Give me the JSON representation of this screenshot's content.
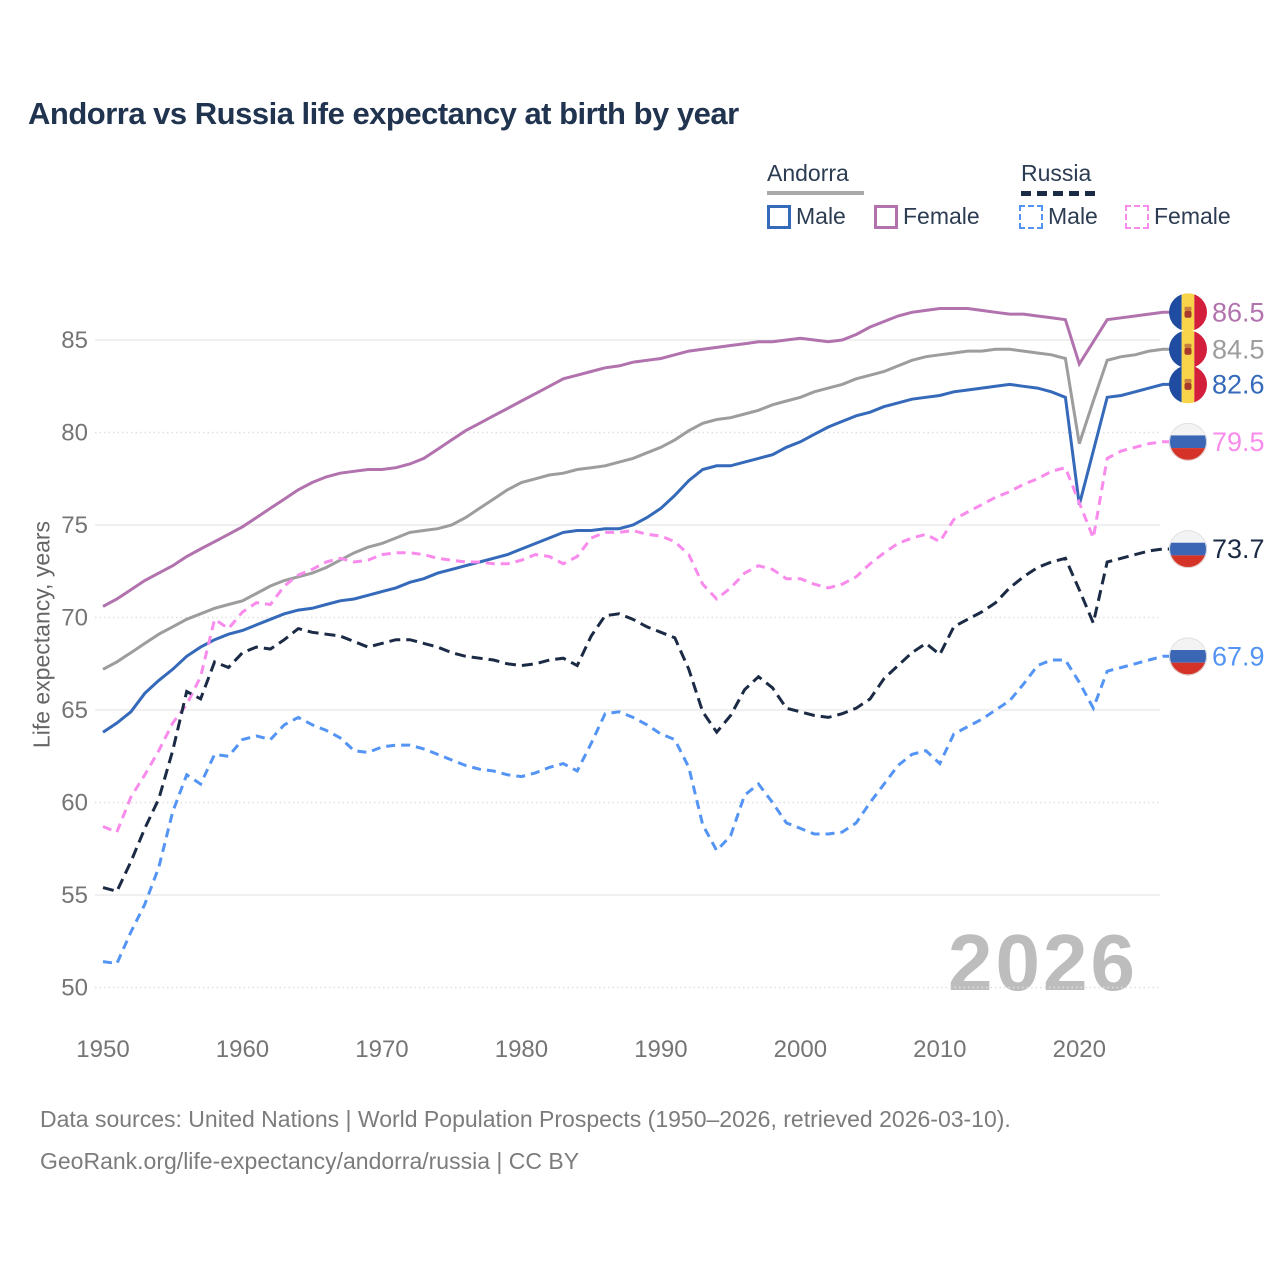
{
  "title": "Andorra vs Russia life expectancy at birth by year",
  "watermark": "2026",
  "y_axis_title": "Life expectancy, years",
  "footer": {
    "line1": "Data sources: United Nations | World Population Prospects (1950–2026, retrieved 2026-03-10).",
    "line2": "GeoRank.org/life-expectancy/andorra/russia | CC BY"
  },
  "legend": {
    "groups": [
      {
        "label": "Andorra",
        "underline_color": "#a9a9a9",
        "underline_style": "solid",
        "items": [
          {
            "label": "Male",
            "color": "#3569b9",
            "dashed": false
          },
          {
            "label": "Female",
            "color": "#b172ae",
            "dashed": false
          }
        ]
      },
      {
        "label": "Russia",
        "underline_color": "#1b2a45",
        "underline_style": "dashed",
        "items": [
          {
            "label": "Male",
            "color": "#5494f4",
            "dashed": true
          },
          {
            "label": "Female",
            "color": "#f88bec",
            "dashed": true
          }
        ]
      }
    ]
  },
  "chart_data": {
    "type": "line",
    "title": "Andorra vs Russia life expectancy at birth by year",
    "xlabel": "",
    "ylabel": "Life expectancy, years",
    "xlim": [
      1950,
      2026
    ],
    "ylim": [
      48.5,
      88.5
    ],
    "xticks": [
      1950,
      1960,
      1970,
      1980,
      1990,
      2000,
      2010,
      2020
    ],
    "yticks": [
      50,
      55,
      60,
      65,
      70,
      75,
      80,
      85
    ],
    "grid": "horizontal",
    "legend_position": "top-right",
    "x": [
      1950,
      1951,
      1952,
      1953,
      1954,
      1955,
      1956,
      1957,
      1958,
      1959,
      1960,
      1961,
      1962,
      1963,
      1964,
      1965,
      1966,
      1967,
      1968,
      1969,
      1970,
      1971,
      1972,
      1973,
      1974,
      1975,
      1976,
      1977,
      1978,
      1979,
      1980,
      1981,
      1982,
      1983,
      1984,
      1985,
      1986,
      1987,
      1988,
      1989,
      1990,
      1991,
      1992,
      1993,
      1994,
      1995,
      1996,
      1997,
      1998,
      1999,
      2000,
      2001,
      2002,
      2003,
      2004,
      2005,
      2006,
      2007,
      2008,
      2009,
      2010,
      2011,
      2012,
      2013,
      2014,
      2015,
      2016,
      2017,
      2018,
      2019,
      2020,
      2021,
      2022,
      2023,
      2024,
      2025,
      2026
    ],
    "series": [
      {
        "name": "Andorra Female",
        "country": "Andorra",
        "sex": "Female",
        "color": "#b172ae",
        "dashed": false,
        "flag": "andorra",
        "end_label": "86.5",
        "values": [
          70.6,
          71.0,
          71.5,
          72.0,
          72.4,
          72.8,
          73.3,
          73.7,
          74.1,
          74.5,
          74.9,
          75.4,
          75.9,
          76.4,
          76.9,
          77.3,
          77.6,
          77.8,
          77.9,
          78.0,
          78.0,
          78.1,
          78.3,
          78.6,
          79.1,
          79.6,
          80.1,
          80.5,
          80.9,
          81.3,
          81.7,
          82.1,
          82.5,
          82.9,
          83.1,
          83.3,
          83.5,
          83.6,
          83.8,
          83.9,
          84.0,
          84.2,
          84.4,
          84.5,
          84.6,
          84.7,
          84.8,
          84.9,
          84.9,
          85.0,
          85.1,
          85.0,
          84.9,
          85.0,
          85.3,
          85.7,
          86.0,
          86.3,
          86.5,
          86.6,
          86.7,
          86.7,
          86.7,
          86.6,
          86.5,
          86.4,
          86.4,
          86.3,
          86.2,
          86.1,
          83.7,
          84.9,
          86.1,
          86.2,
          86.3,
          86.4,
          86.5
        ]
      },
      {
        "name": "Andorra Both sexes",
        "country": "Andorra",
        "sex": "Both",
        "color": "#9d9d9d",
        "dashed": false,
        "flag": "andorra",
        "end_label": "84.5",
        "values": [
          67.2,
          67.6,
          68.1,
          68.6,
          69.1,
          69.5,
          69.9,
          70.2,
          70.5,
          70.7,
          70.9,
          71.3,
          71.7,
          72.0,
          72.2,
          72.4,
          72.7,
          73.1,
          73.5,
          73.8,
          74.0,
          74.3,
          74.6,
          74.7,
          74.8,
          75.0,
          75.4,
          75.9,
          76.4,
          76.9,
          77.3,
          77.5,
          77.7,
          77.8,
          78.0,
          78.1,
          78.2,
          78.4,
          78.6,
          78.9,
          79.2,
          79.6,
          80.1,
          80.5,
          80.7,
          80.8,
          81.0,
          81.2,
          81.5,
          81.7,
          81.9,
          82.2,
          82.4,
          82.6,
          82.9,
          83.1,
          83.3,
          83.6,
          83.9,
          84.1,
          84.2,
          84.3,
          84.4,
          84.4,
          84.5,
          84.5,
          84.4,
          84.3,
          84.2,
          84.0,
          79.4,
          81.7,
          83.9,
          84.1,
          84.2,
          84.4,
          84.5
        ]
      },
      {
        "name": "Andorra Male",
        "country": "Andorra",
        "sex": "Male",
        "color": "#3569b9",
        "dashed": false,
        "flag": "andorra",
        "end_label": "82.6",
        "values": [
          63.8,
          64.3,
          64.9,
          65.9,
          66.6,
          67.2,
          67.9,
          68.4,
          68.8,
          69.1,
          69.3,
          69.6,
          69.9,
          70.2,
          70.4,
          70.5,
          70.7,
          70.9,
          71.0,
          71.2,
          71.4,
          71.6,
          71.9,
          72.1,
          72.4,
          72.6,
          72.8,
          73.0,
          73.2,
          73.4,
          73.7,
          74.0,
          74.3,
          74.6,
          74.7,
          74.7,
          74.8,
          74.8,
          75.0,
          75.4,
          75.9,
          76.6,
          77.4,
          78.0,
          78.2,
          78.2,
          78.4,
          78.6,
          78.8,
          79.2,
          79.5,
          79.9,
          80.3,
          80.6,
          80.9,
          81.1,
          81.4,
          81.6,
          81.8,
          81.9,
          82.0,
          82.2,
          82.3,
          82.4,
          82.5,
          82.6,
          82.5,
          82.4,
          82.2,
          81.9,
          76.1,
          79.0,
          81.9,
          82.0,
          82.2,
          82.4,
          82.6
        ]
      },
      {
        "name": "Russia Female",
        "country": "Russia",
        "sex": "Female",
        "color": "#f88bec",
        "dashed": true,
        "flag": "russia",
        "end_label": "79.5",
        "values": [
          58.7,
          58.4,
          60.3,
          61.5,
          62.8,
          64.3,
          65.3,
          66.8,
          69.9,
          69.4,
          70.3,
          70.8,
          70.7,
          71.7,
          72.3,
          72.6,
          73.0,
          73.2,
          73.0,
          73.1,
          73.4,
          73.5,
          73.5,
          73.4,
          73.2,
          73.1,
          73.0,
          73.0,
          72.9,
          72.9,
          73.1,
          73.4,
          73.3,
          72.9,
          73.3,
          74.3,
          74.6,
          74.6,
          74.7,
          74.5,
          74.4,
          74.1,
          73.4,
          71.8,
          71.0,
          71.6,
          72.4,
          72.8,
          72.6,
          72.1,
          72.1,
          71.8,
          71.6,
          71.8,
          72.2,
          72.9,
          73.5,
          74.0,
          74.3,
          74.5,
          74.1,
          75.3,
          75.7,
          76.1,
          76.5,
          76.8,
          77.2,
          77.5,
          77.9,
          78.1,
          76.2,
          74.3,
          78.6,
          79.0,
          79.2,
          79.4,
          79.5
        ]
      },
      {
        "name": "Russia Both sexes",
        "country": "Russia",
        "sex": "Both",
        "color": "#1b2a45",
        "dashed": true,
        "flag": "russia",
        "end_label": "73.7",
        "values": [
          55.4,
          55.2,
          56.8,
          58.6,
          60.2,
          62.8,
          66.0,
          65.6,
          67.6,
          67.3,
          68.1,
          68.4,
          68.3,
          68.8,
          69.4,
          69.2,
          69.1,
          69.0,
          68.7,
          68.4,
          68.6,
          68.8,
          68.8,
          68.6,
          68.4,
          68.1,
          67.9,
          67.8,
          67.7,
          67.5,
          67.4,
          67.5,
          67.7,
          67.8,
          67.4,
          69.0,
          70.1,
          70.2,
          69.9,
          69.5,
          69.2,
          68.9,
          67.2,
          64.9,
          63.8,
          64.7,
          66.1,
          66.8,
          66.2,
          65.1,
          64.9,
          64.7,
          64.6,
          64.8,
          65.1,
          65.6,
          66.7,
          67.4,
          68.1,
          68.6,
          68.0,
          69.5,
          69.9,
          70.3,
          70.8,
          71.6,
          72.2,
          72.7,
          73.0,
          73.2,
          71.5,
          69.7,
          73.0,
          73.2,
          73.4,
          73.6,
          73.7
        ]
      },
      {
        "name": "Russia Male",
        "country": "Russia",
        "sex": "Male",
        "color": "#5494f4",
        "dashed": true,
        "flag": "russia",
        "end_label": "67.9",
        "values": [
          51.4,
          51.3,
          53.0,
          54.5,
          56.5,
          59.5,
          61.5,
          61.0,
          62.6,
          62.5,
          63.4,
          63.6,
          63.4,
          64.2,
          64.6,
          64.2,
          63.9,
          63.5,
          62.8,
          62.7,
          63.0,
          63.1,
          63.1,
          62.9,
          62.6,
          62.3,
          62.0,
          61.8,
          61.7,
          61.5,
          61.4,
          61.6,
          61.9,
          62.1,
          61.7,
          63.2,
          64.8,
          64.9,
          64.6,
          64.2,
          63.7,
          63.4,
          61.9,
          58.8,
          57.4,
          58.2,
          60.4,
          61.0,
          60.0,
          58.9,
          58.6,
          58.3,
          58.3,
          58.4,
          58.9,
          60.0,
          61.0,
          62.0,
          62.6,
          62.8,
          62.1,
          63.7,
          64.1,
          64.5,
          65.0,
          65.5,
          66.4,
          67.4,
          67.7,
          67.7,
          66.5,
          65.1,
          67.1,
          67.3,
          67.5,
          67.7,
          67.9
        ]
      }
    ]
  },
  "style": {
    "title_color": "#20334f",
    "axis_label_color": "#757575",
    "watermark_color": "#bdbdbd",
    "andorra_flag": {
      "blue": "#1f4ba0",
      "yellow": "#f8d44a",
      "red": "#d31e3c",
      "emblem": "#a83a2c"
    },
    "russia_flag": {
      "white": "#f3f3f3",
      "blue": "#3b66b5",
      "red": "#d53327"
    }
  }
}
